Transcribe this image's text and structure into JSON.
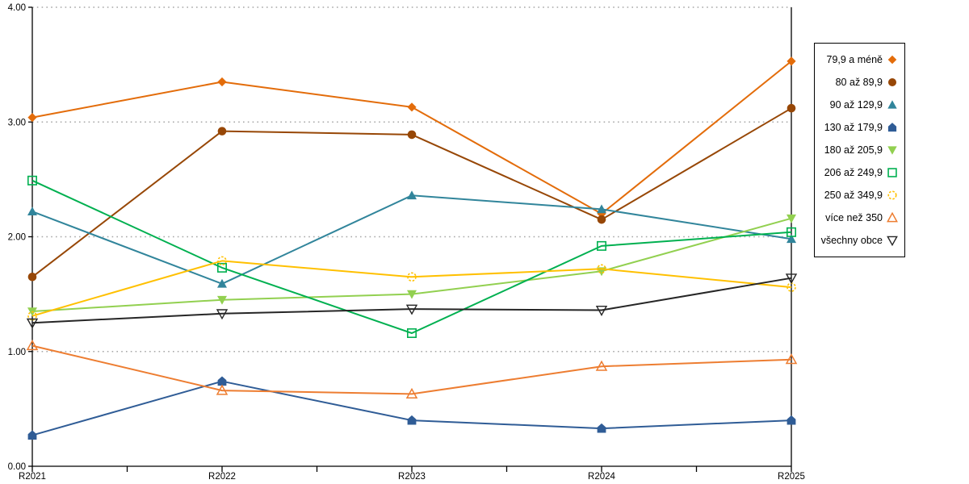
{
  "chart_data": {
    "type": "line",
    "title": "",
    "xlabel": "",
    "ylabel": "",
    "x_categories": [
      "R2021",
      "R2022",
      "R2023",
      "R2024",
      "R2025"
    ],
    "ytick_labels": [
      "0.00",
      "1.00",
      "2.00",
      "3.00",
      "4.00"
    ],
    "ylim": [
      0,
      4
    ],
    "grid": "horizontal-dotted",
    "legend_position": "right",
    "x_minor_ticks_between_labels": true,
    "colors": {
      "gridline": "#A6A6A6",
      "axis": "#000000",
      "background": "#FFFFFF"
    },
    "series": [
      {
        "name": "79,9 a méně",
        "marker": "diamond-filled",
        "color": "#E36C0A",
        "values": [
          3.04,
          3.35,
          3.13,
          2.2,
          3.53
        ]
      },
      {
        "name": "80 až 89,9",
        "marker": "circle-filled",
        "color": "#974706",
        "values": [
          1.65,
          2.92,
          2.89,
          2.15,
          3.12
        ]
      },
      {
        "name": "90 až 129,9",
        "marker": "triangle-up-filled",
        "color": "#31859B",
        "values": [
          2.22,
          1.59,
          2.36,
          2.24,
          1.98
        ]
      },
      {
        "name": "130 až 179,9",
        "marker": "pentagon-filled",
        "color": "#2F5C96",
        "values": [
          0.27,
          0.74,
          0.4,
          0.33,
          0.4
        ]
      },
      {
        "name": "180 až 205,9",
        "marker": "triangle-down-filled",
        "color": "#92D050",
        "values": [
          1.35,
          1.45,
          1.5,
          1.7,
          2.16
        ]
      },
      {
        "name": "206 až 249,9",
        "marker": "square-open",
        "color": "#00B050",
        "values": [
          2.49,
          1.73,
          1.16,
          1.92,
          2.04
        ]
      },
      {
        "name": "250 až 349,9",
        "marker": "circle-open-dashed",
        "color": "#FFC000",
        "values": [
          1.31,
          1.79,
          1.65,
          1.72,
          1.56
        ]
      },
      {
        "name": "více než 350",
        "marker": "triangle-up-open",
        "color": "#ED7D31",
        "values": [
          1.05,
          0.66,
          0.63,
          0.87,
          0.93
        ]
      },
      {
        "name": "všechny obce",
        "marker": "triangle-down-open",
        "color": "#262626",
        "values": [
          1.25,
          1.33,
          1.37,
          1.36,
          1.64
        ]
      }
    ]
  }
}
